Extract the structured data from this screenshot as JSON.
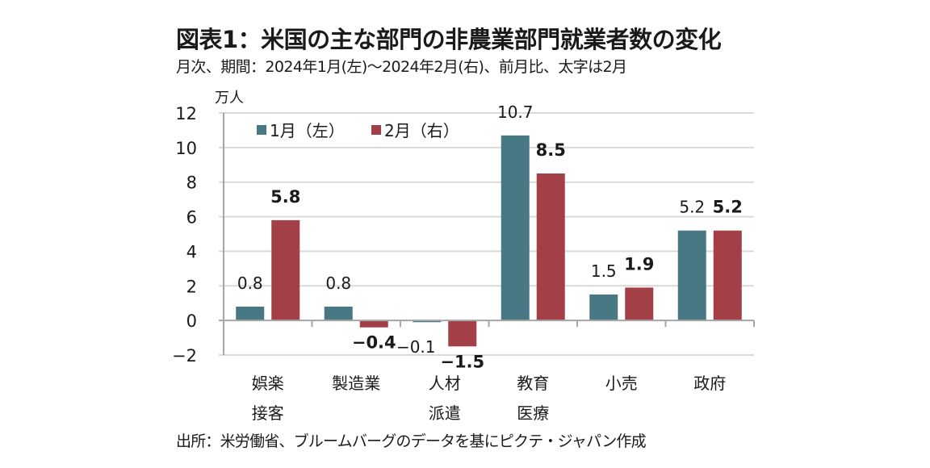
{
  "header": {
    "title": "図表1：米国の主な部門の非農業部門就業者数の変化",
    "subtitle": "月次、期間：2024年1月(左)～2024年2月(右)、前月比、太字は2月"
  },
  "footer": {
    "source": "出所：米労働省、ブルームバーグのデータを基にピクテ・ジャパン作成"
  },
  "chart_data": {
    "type": "bar",
    "title": "図表1：米国の主な部門の非農業部門就業者数の変化",
    "ylabel": "万人",
    "xlabel": "",
    "ylim": [
      -2,
      12
    ],
    "yticks": [
      -2,
      0,
      2,
      4,
      6,
      8,
      10,
      12
    ],
    "ytick_labels": [
      "−2",
      "0",
      "2",
      "4",
      "6",
      "8",
      "10",
      "12"
    ],
    "grid": true,
    "legend": "top-left",
    "categories": [
      [
        "娯楽",
        "接客"
      ],
      [
        "製造業"
      ],
      [
        "人材",
        "派遣"
      ],
      [
        "教育",
        "医療"
      ],
      [
        "小売"
      ],
      [
        "政府"
      ]
    ],
    "series": [
      {
        "name": "1月（左）",
        "color": "#487883",
        "values": [
          0.8,
          0.8,
          -0.1,
          10.7,
          1.5,
          5.2
        ],
        "labels": [
          "0.8",
          "0.8",
          "−0.1",
          "10.7",
          "1.5",
          "5.2"
        ]
      },
      {
        "name": "2月（右）",
        "color": "#a23f47",
        "values": [
          5.8,
          -0.4,
          -1.5,
          8.5,
          1.9,
          5.2
        ],
        "labels": [
          "5.8",
          "−0.4",
          "−1.5",
          "8.5",
          "1.9",
          "5.2"
        ]
      }
    ]
  }
}
